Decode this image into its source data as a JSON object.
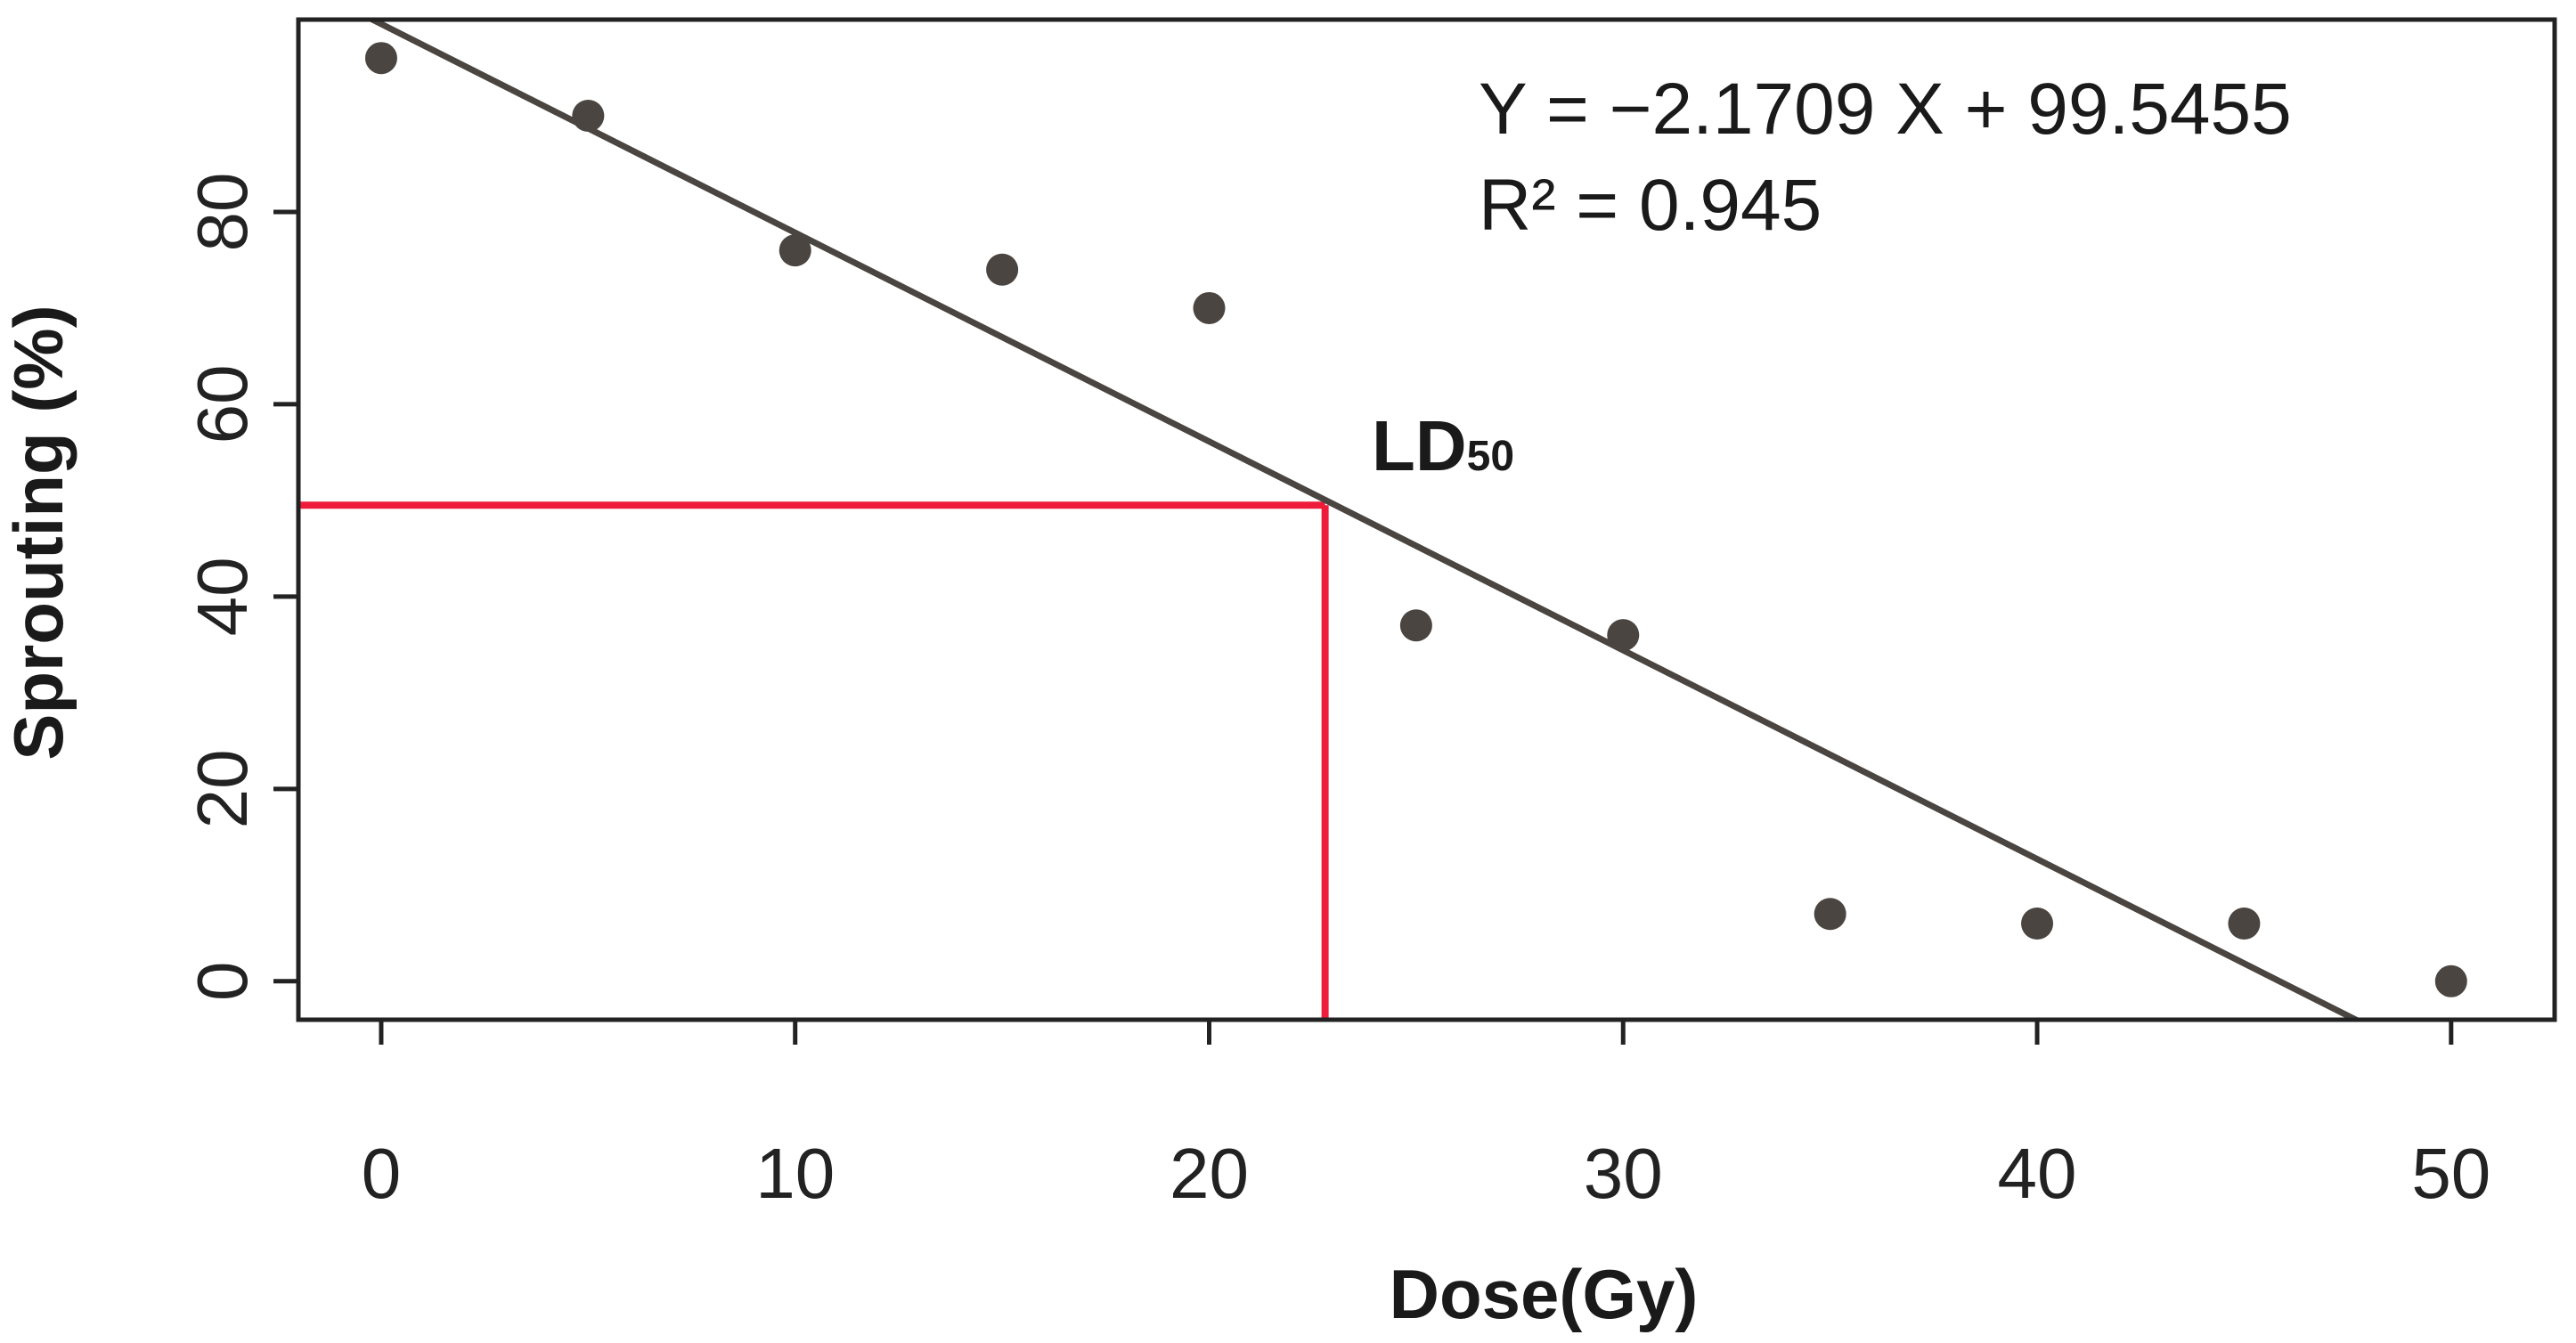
{
  "chart_data": {
    "type": "scatter",
    "xlabel": "Dose(Gy)",
    "ylabel": "Sprouting  (%)",
    "x_ticks": [
      0,
      10,
      20,
      30,
      40,
      50
    ],
    "y_ticks": [
      0,
      20,
      40,
      60,
      80
    ],
    "xlim": [
      -2,
      52.5
    ],
    "ylim": [
      -4,
      100
    ],
    "series": [
      {
        "x": [
          0,
          5,
          10,
          15,
          20,
          25,
          30,
          35,
          40,
          45,
          50
        ],
        "y": [
          96,
          90,
          76,
          74,
          70,
          37,
          36,
          7,
          6,
          6,
          0
        ],
        "color": "#4a4540"
      }
    ],
    "regression": {
      "slope": -2.1709,
      "intercept": 99.5455,
      "color": "#4a4540",
      "equation_text": "Y = −2.1709 X + 99.5455",
      "r2_text": "R² = 0.945"
    },
    "ld50": {
      "label": "LD",
      "subscript": "50",
      "x": 22.8,
      "y": 49.5,
      "color": "#ee1c3a"
    },
    "grid": false,
    "legend": "none"
  }
}
